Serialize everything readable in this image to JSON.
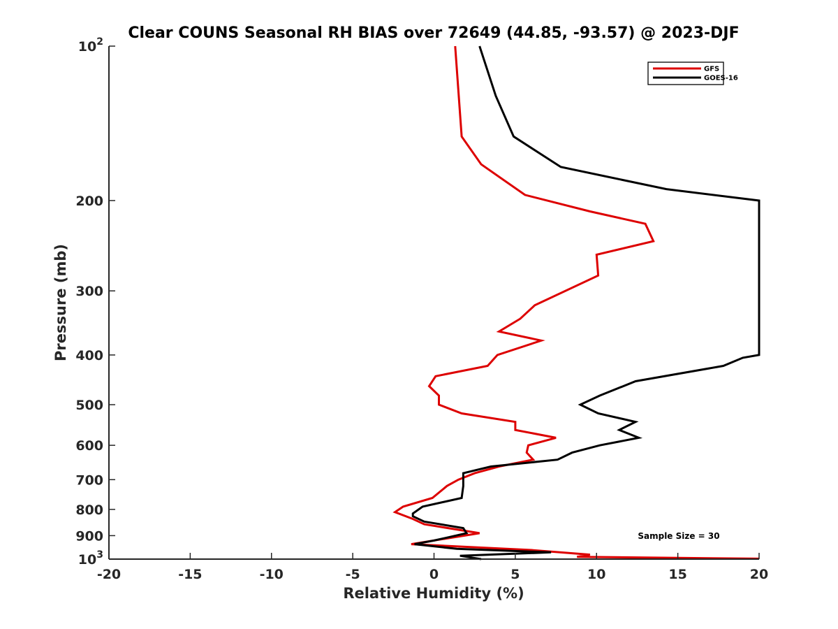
{
  "chart_data": {
    "type": "line",
    "title": "Clear COUNS Seasonal RH BIAS over 72649 (44.85, -93.57) @ 2023-DJF",
    "xlabel": "Relative Humidity (%)",
    "ylabel": "Pressure (mb)",
    "xlim": [
      -20,
      20
    ],
    "ylim": [
      100,
      1000
    ],
    "yscale": "log",
    "y_reversed": true,
    "grid": false,
    "legend_location": "top-right",
    "xticks": [
      -20,
      -15,
      -10,
      -5,
      0,
      5,
      10,
      15,
      20
    ],
    "xtick_labels": [
      "-20",
      "-15",
      "-10",
      "-5",
      "0",
      "5",
      "10",
      "15",
      "20"
    ],
    "yticks": [
      {
        "value": 100,
        "base": "10",
        "exp": "2"
      },
      {
        "value": 200,
        "label": "200"
      },
      {
        "value": 300,
        "label": "300"
      },
      {
        "value": 400,
        "label": "400"
      },
      {
        "value": 500,
        "label": "500"
      },
      {
        "value": 600,
        "label": "600"
      },
      {
        "value": 700,
        "label": "700"
      },
      {
        "value": 800,
        "label": "800"
      },
      {
        "value": 900,
        "label": "900"
      },
      {
        "value": 1000,
        "base": "10",
        "exp": "3"
      }
    ],
    "annotation": "Sample Size = 30",
    "series": [
      {
        "name": "GFS",
        "color": "#dd0000",
        "points": [
          [
            1.3,
            100
          ],
          [
            1.7,
            150
          ],
          [
            2.9,
            170
          ],
          [
            5.6,
            195
          ],
          [
            9.6,
            210
          ],
          [
            13.0,
            222
          ],
          [
            13.5,
            240
          ],
          [
            10.0,
            255
          ],
          [
            10.1,
            280
          ],
          [
            6.2,
            320
          ],
          [
            5.3,
            340
          ],
          [
            4.0,
            360
          ],
          [
            6.6,
            375
          ],
          [
            3.9,
            400
          ],
          [
            3.3,
            420
          ],
          [
            0.1,
            440
          ],
          [
            -0.3,
            460
          ],
          [
            0.3,
            480
          ],
          [
            0.3,
            500
          ],
          [
            1.7,
            520
          ],
          [
            5.0,
            540
          ],
          [
            5.0,
            560
          ],
          [
            7.5,
            580
          ],
          [
            5.8,
            600
          ],
          [
            5.7,
            620
          ],
          [
            6.1,
            640
          ],
          [
            4.0,
            660
          ],
          [
            2.5,
            680
          ],
          [
            1.5,
            700
          ],
          [
            0.8,
            720
          ],
          [
            -0.1,
            760
          ],
          [
            -1.9,
            790
          ],
          [
            -2.4,
            810
          ],
          [
            -1.3,
            835
          ],
          [
            -0.6,
            855
          ],
          [
            2.8,
            890
          ],
          [
            -1.4,
            935
          ],
          [
            6.0,
            960
          ],
          [
            9.6,
            980
          ],
          [
            8.8,
            990
          ],
          [
            20,
            998
          ]
        ]
      },
      {
        "name": "GOES-16",
        "color": "#000000",
        "points": [
          [
            2.8,
            100
          ],
          [
            3.8,
            125
          ],
          [
            4.9,
            150
          ],
          [
            7.8,
            172
          ],
          [
            14.3,
            190
          ],
          [
            20,
            200
          ],
          [
            20,
            400
          ],
          [
            19.0,
            405
          ],
          [
            17.8,
            420
          ],
          [
            12.4,
            450
          ],
          [
            10.2,
            480
          ],
          [
            9.0,
            500
          ],
          [
            10.1,
            520
          ],
          [
            12.4,
            540
          ],
          [
            11.4,
            560
          ],
          [
            12.6,
            580
          ],
          [
            10.2,
            600
          ],
          [
            8.5,
            620
          ],
          [
            7.6,
            640
          ],
          [
            3.5,
            660
          ],
          [
            1.8,
            680
          ],
          [
            1.8,
            720
          ],
          [
            1.7,
            760
          ],
          [
            -0.7,
            790
          ],
          [
            -1.3,
            815
          ],
          [
            -1.3,
            825
          ],
          [
            -0.6,
            845
          ],
          [
            1.8,
            870
          ],
          [
            2.0,
            890
          ],
          [
            0.0,
            920
          ],
          [
            -1.2,
            935
          ],
          [
            1.4,
            955
          ],
          [
            7.2,
            970
          ],
          [
            1.6,
            985
          ],
          [
            2.9,
            1000
          ]
        ]
      }
    ]
  }
}
